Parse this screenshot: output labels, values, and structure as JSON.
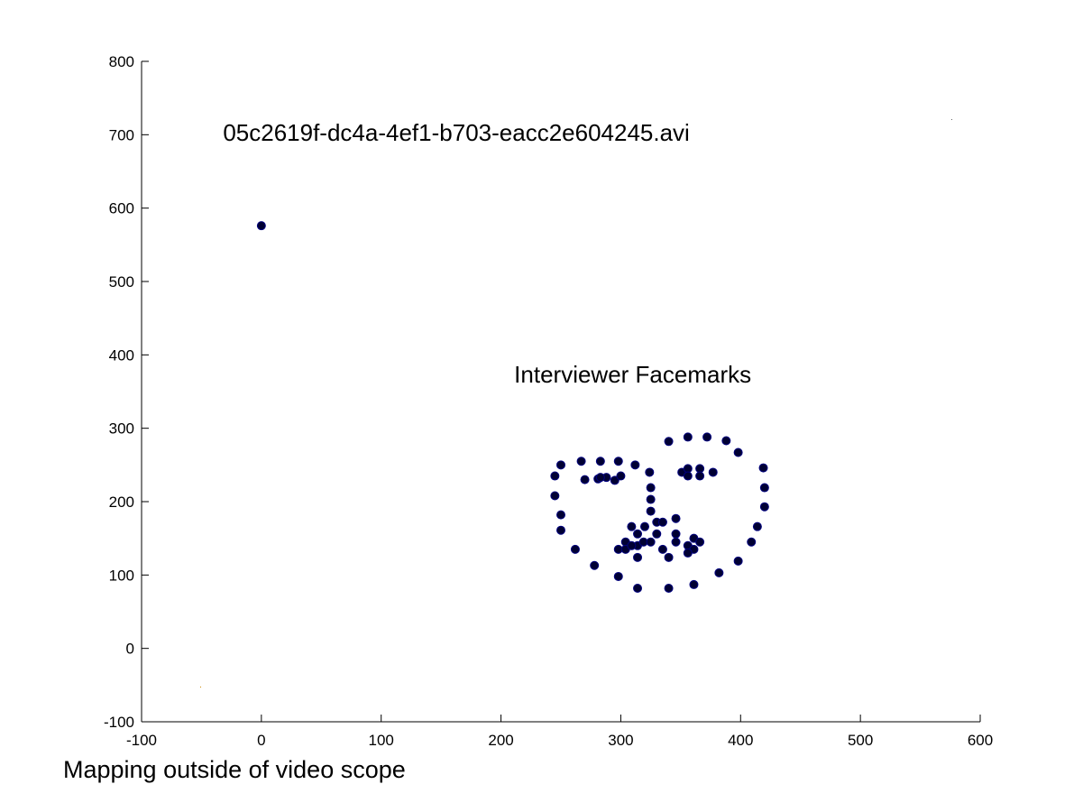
{
  "caption": "Mapping outside of video scope",
  "chart_data": {
    "type": "scatter",
    "xlim": [
      -100,
      600
    ],
    "ylim": [
      -100,
      800
    ],
    "x_ticks": [
      -100,
      0,
      100,
      200,
      300,
      400,
      500,
      600
    ],
    "y_ticks": [
      -100,
      0,
      100,
      200,
      300,
      400,
      500,
      600,
      700,
      800
    ],
    "grid": false,
    "marker_color": "#000033",
    "marker_edge_color": "#000080",
    "annotations": [
      {
        "text": "05c2619f-dc4a-4ef1-b703-eacc2e604245.avi",
        "x": -32,
        "y": 692
      },
      {
        "text": "Interviewer Facemarks",
        "x": 211,
        "y": 362
      }
    ],
    "series": [
      {
        "points": [
          [
            0,
            576
          ],
          [
            245,
            235
          ],
          [
            250,
            250
          ],
          [
            267,
            255
          ],
          [
            283,
            255
          ],
          [
            298,
            255
          ],
          [
            312,
            250
          ],
          [
            324,
            240
          ],
          [
            270,
            230
          ],
          [
            281,
            231
          ],
          [
            288,
            233
          ],
          [
            295,
            229
          ],
          [
            300,
            235
          ],
          [
            283,
            233
          ],
          [
            245,
            208
          ],
          [
            250,
            182
          ],
          [
            250,
            161
          ],
          [
            262,
            135
          ],
          [
            278,
            113
          ],
          [
            298,
            98
          ],
          [
            314,
            82
          ],
          [
            340,
            82
          ],
          [
            361,
            87
          ],
          [
            382,
            103
          ],
          [
            398,
            119
          ],
          [
            409,
            145
          ],
          [
            414,
            166
          ],
          [
            420,
            193
          ],
          [
            420,
            219
          ],
          [
            419,
            246
          ],
          [
            340,
            282
          ],
          [
            356,
            288
          ],
          [
            372,
            288
          ],
          [
            388,
            283
          ],
          [
            398,
            267
          ],
          [
            351,
            240
          ],
          [
            356,
            245
          ],
          [
            366,
            245
          ],
          [
            377,
            240
          ],
          [
            356,
            235
          ],
          [
            366,
            235
          ],
          [
            325,
            219
          ],
          [
            325,
            203
          ],
          [
            325,
            187
          ],
          [
            309,
            166
          ],
          [
            314,
            156
          ],
          [
            320,
            166
          ],
          [
            330,
            172
          ],
          [
            335,
            172
          ],
          [
            346,
            177
          ],
          [
            346,
            156
          ],
          [
            330,
            156
          ],
          [
            314,
            140
          ],
          [
            304,
            145
          ],
          [
            298,
            135
          ],
          [
            304,
            135
          ],
          [
            309,
            140
          ],
          [
            319,
            145
          ],
          [
            325,
            145
          ],
          [
            335,
            135
          ],
          [
            346,
            145
          ],
          [
            356,
            140
          ],
          [
            361,
            150
          ],
          [
            366,
            145
          ],
          [
            361,
            135
          ],
          [
            356,
            130
          ],
          [
            340,
            124
          ],
          [
            314,
            124
          ]
        ]
      }
    ]
  }
}
